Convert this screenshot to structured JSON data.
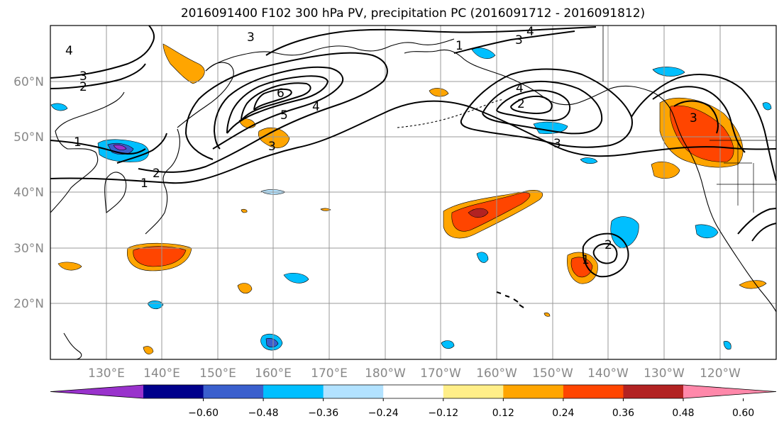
{
  "title": "2016091400 F102 300 hPa PV, precipitation PC (2016091712 - 2016091812)",
  "lat_labels": [
    "60°N",
    "50°N",
    "40°N",
    "30°N",
    "20°N"
  ],
  "lon_labels": [
    "130°E",
    "140°E",
    "150°E",
    "160°E",
    "170°E",
    "180°W",
    "170°W",
    "160°W",
    "150°W",
    "140°W",
    "130°W",
    "120°W"
  ],
  "colorbar": {
    "ticks": [
      "−0.60",
      "−0.48",
      "−0.36",
      "−0.24",
      "−0.12",
      "0.12",
      "0.24",
      "0.36",
      "0.48",
      "0.60"
    ],
    "colors": [
      "#9932cc",
      "#00008b",
      "#3a5fcd",
      "#00bfff",
      "#b2e2ff",
      "#ffffff",
      "#ffee88",
      "#ffa500",
      "#ff4500",
      "#b22222",
      "#ff88aa"
    ]
  },
  "contour_labels": [
    {
      "text": "4",
      "key": "c1"
    },
    {
      "text": "3",
      "key": "c2"
    },
    {
      "text": "2",
      "key": "c3"
    },
    {
      "text": "3",
      "key": "c4"
    },
    {
      "text": "1",
      "key": "c5"
    },
    {
      "text": "4",
      "key": "c6"
    },
    {
      "text": "3",
      "key": "c7"
    },
    {
      "text": "1",
      "key": "c8"
    },
    {
      "text": "6",
      "key": "c9"
    },
    {
      "text": "5",
      "key": "c10"
    },
    {
      "text": "4",
      "key": "c11"
    },
    {
      "text": "3",
      "key": "c12"
    },
    {
      "text": "2",
      "key": "c13"
    },
    {
      "text": "1",
      "key": "c14"
    },
    {
      "text": "4",
      "key": "c15"
    },
    {
      "text": "2",
      "key": "c16"
    },
    {
      "text": "3",
      "key": "c17"
    },
    {
      "text": "3",
      "key": "c18"
    },
    {
      "text": "2",
      "key": "c19"
    },
    {
      "text": "1",
      "key": "c20"
    }
  ]
}
